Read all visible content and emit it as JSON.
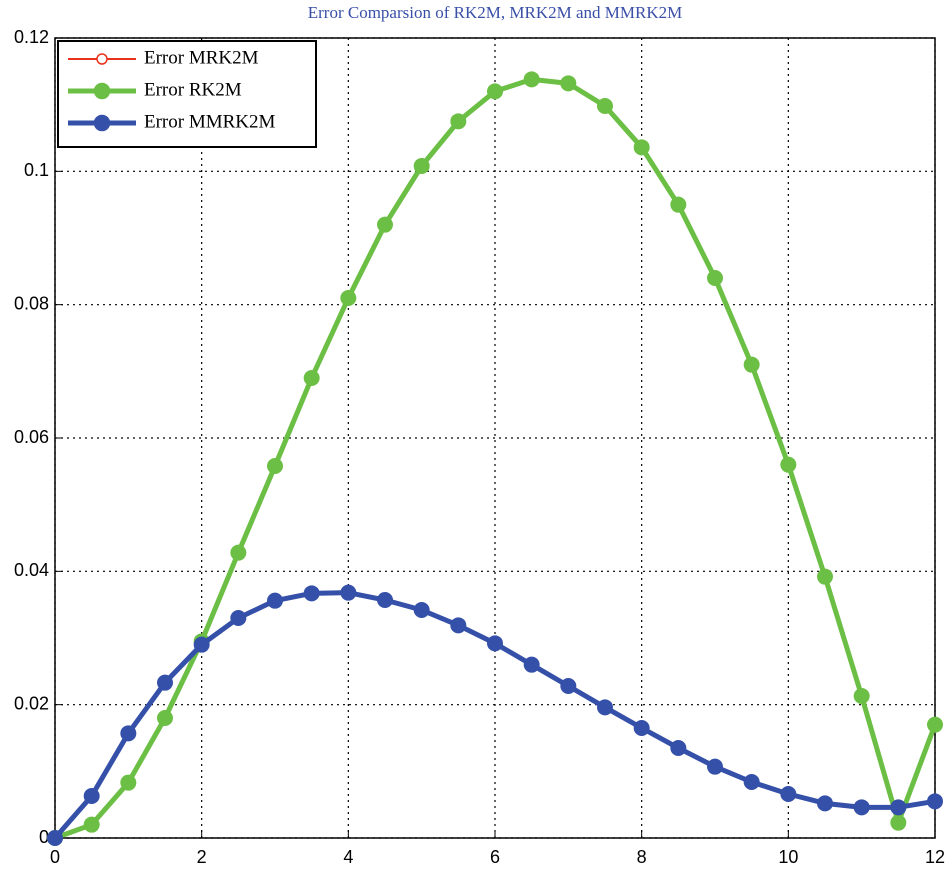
{
  "chart_data": {
    "type": "line",
    "title": "Error Comparsion of RK2M, MRK2M and MMRK2M",
    "x": [
      0,
      0.5,
      1,
      1.5,
      2,
      2.5,
      3,
      3.5,
      4,
      4.5,
      5,
      5.5,
      6,
      6.5,
      7,
      7.5,
      8,
      8.5,
      9,
      9.5,
      10,
      10.5,
      11,
      11.5,
      12
    ],
    "series": [
      {
        "name": "Error MRK2M",
        "color": "#e8321e",
        "marker": "open-circle",
        "values": [
          0,
          0.0063,
          0.0157,
          0.0233,
          0.029,
          0.033,
          0.0356,
          0.0367,
          0.0368,
          0.0357,
          0.0342,
          0.0319,
          0.0292,
          0.026,
          0.0228,
          0.0196,
          0.0165,
          0.0135,
          0.0107,
          0.0084,
          0.0066,
          0.0052,
          0.0046,
          0.0046,
          0.0055
        ]
      },
      {
        "name": "Error RK2M",
        "color": "#6cbf45",
        "marker": "filled-circle",
        "values": [
          0,
          0.002,
          0.0083,
          0.018,
          0.0295,
          0.0428,
          0.0558,
          0.069,
          0.081,
          0.092,
          0.1008,
          0.1075,
          0.112,
          0.1138,
          0.1132,
          0.1098,
          0.1036,
          0.095,
          0.084,
          0.071,
          0.056,
          0.0392,
          0.0213,
          0.0023,
          0.017
        ]
      },
      {
        "name": "Error MMRK2M",
        "color": "#3550a8",
        "marker": "filled-circle",
        "values": [
          0,
          0.0063,
          0.0157,
          0.0233,
          0.029,
          0.033,
          0.0356,
          0.0367,
          0.0368,
          0.0357,
          0.0342,
          0.0319,
          0.0292,
          0.026,
          0.0228,
          0.0196,
          0.0165,
          0.0135,
          0.0107,
          0.0084,
          0.0066,
          0.0052,
          0.0046,
          0.0046,
          0.0055
        ]
      }
    ],
    "xlim": [
      0,
      12
    ],
    "xticks": [
      0,
      2,
      4,
      6,
      8,
      10,
      12
    ],
    "ylim": [
      0,
      0.12
    ],
    "yticks": [
      0,
      0.02,
      0.04,
      0.06,
      0.08,
      0.1,
      0.12
    ],
    "grid": true,
    "legend": "upper left"
  }
}
